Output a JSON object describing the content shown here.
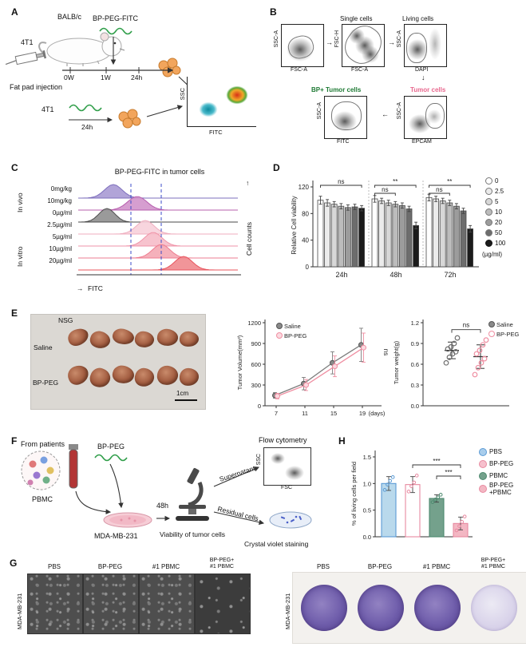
{
  "icons": {
    "arrow_right": "→",
    "arrow_left": "←",
    "arrow_down": "↓",
    "arrow_up": "↑"
  },
  "panels": {
    "A": {
      "label": "A",
      "strain": "BALB/c",
      "reagent": "BP-PEG-FITC",
      "cell_top": "4T1",
      "cell_bottom": "4T1",
      "timeline": {
        "t0": "0W",
        "t1": "1W",
        "t2": "24h"
      },
      "injection": "Fat pad injection",
      "incubation": "24h",
      "flow": {
        "y": "SSC",
        "x": "FITC"
      }
    },
    "B": {
      "label": "B",
      "p1": {
        "y": "SSC-A",
        "x": "FSC-A"
      },
      "p2": {
        "title": "Single cells",
        "y": "FSC-H",
        "x": "FSC-A"
      },
      "p3": {
        "title": "Living cells",
        "y": "SSC-A",
        "x": "DAPI"
      },
      "p4": {
        "title": "Tumor cells",
        "y": "SSC-A",
        "x": "EPCAM",
        "title_color": "#e8688e"
      },
      "p5": {
        "title": "BP+ Tumor cells",
        "y": "SSC-A",
        "x": "FITC",
        "title_color": "#1e7a34"
      }
    },
    "C": {
      "label": "C"
    },
    "D": {
      "label": "D"
    },
    "E": {
      "label": "E",
      "photo": {
        "strain": "NSG",
        "row1": "Saline",
        "row2": "BP-PEG",
        "scale_bar": "1cm"
      }
    },
    "F": {
      "label": "F",
      "from_patients": "From patients",
      "pbmc": "PBMC",
      "reagent": "BP-PEG",
      "incubation": "48h",
      "cell_line": "MDA-MB-231",
      "viability": "Viability of tumor cells",
      "supernatant": "Supernatant",
      "residual": "Residual cells",
      "flow_title": "Flow cytometry",
      "flow": {
        "y": "SSC",
        "x": "FSC"
      },
      "crystal": "Crystal violet staining"
    },
    "G": {
      "label": "G",
      "row_label": "MDA-MB-231",
      "cols": [
        "PBS",
        "BP-PEG",
        "#1 PBMC",
        "BP-PEG+\n#1 PBMC"
      ],
      "right_row_label": "MDA-MB-231",
      "right_cols": [
        "PBS",
        "BP-PEG",
        "#1 PBMC",
        "BP-PEG+\n#1 PBMC"
      ]
    },
    "H": {
      "label": "H"
    }
  },
  "chart_data": [
    {
      "id": "hist-c",
      "type": "area",
      "title": "BP-PEG-FITC in tumor cells",
      "xlabel": "FITC",
      "ylabel": "Cell counts",
      "groups": [
        {
          "name": "In vivo"
        },
        {
          "name": "In vitro"
        }
      ],
      "rows": [
        {
          "label": "0mg/kg",
          "group": "In vivo",
          "peak": 0.22,
          "width": 0.1,
          "stroke": "#7e6fbd",
          "fill": "#a99ad4"
        },
        {
          "label": "10mg/kg",
          "group": "In vivo",
          "peak": 0.37,
          "width": 0.11,
          "stroke": "#b75fae",
          "fill": "#d293cb"
        },
        {
          "label": "0µg/ml",
          "group": "In vitro",
          "peak": 0.18,
          "width": 0.09,
          "stroke": "#4a4a4a",
          "fill": "#8f8f8f"
        },
        {
          "label": "2.5µg/ml",
          "group": "In vitro",
          "peak": 0.42,
          "width": 0.1,
          "stroke": "#efaebf",
          "fill": "#f7d0da"
        },
        {
          "label": "5µg/ml",
          "group": "In vitro",
          "peak": 0.47,
          "width": 0.1,
          "stroke": "#ef93a8",
          "fill": "#f6bcc9"
        },
        {
          "label": "10µg/ml",
          "group": "In vitro",
          "peak": 0.52,
          "width": 0.1,
          "stroke": "#ee7d90",
          "fill": "#f4a9b4"
        },
        {
          "label": "20µg/ml",
          "group": "In vitro",
          "peak": 0.66,
          "width": 0.1,
          "stroke": "#e8555e",
          "fill": "#f08a8e"
        }
      ],
      "gate_lines": [
        0.33,
        0.52
      ],
      "gate_color": "#3b4bc8"
    },
    {
      "id": "bars-d",
      "type": "bar",
      "ylabel": "Relative Cell viability",
      "ylim": [
        0,
        120
      ],
      "yticks": [
        0,
        40,
        80,
        120
      ],
      "categories": [
        "24h",
        "48h",
        "72h"
      ],
      "series_labels": [
        "0",
        "2.5",
        "5",
        "10",
        "20",
        "50",
        "100"
      ],
      "legend_unit": "(µg/ml)",
      "series_fills": [
        "#ffffff",
        "#ebebeb",
        "#d7d7d7",
        "#bcbcbc",
        "#9c9c9c",
        "#6d6d6d",
        "#1b1b1b"
      ],
      "bar_stroke": "#4a4a4a",
      "values": [
        [
          100,
          96,
          94,
          91,
          89,
          90,
          88
        ],
        [
          102,
          99,
          96,
          94,
          92,
          87,
          62
        ],
        [
          104,
          102,
          99,
          96,
          91,
          84,
          57
        ]
      ],
      "errors": [
        [
          6,
          5,
          4,
          4,
          4,
          4,
          4
        ],
        [
          5,
          4,
          4,
          4,
          4,
          4,
          5
        ],
        [
          5,
          4,
          4,
          4,
          4,
          4,
          5
        ]
      ],
      "significance": [
        {
          "group": 0,
          "label": "ns",
          "from": 0,
          "to": 6,
          "level": 1
        },
        {
          "group": 1,
          "label": "ns",
          "from": 0,
          "to": 3,
          "level": 0
        },
        {
          "group": 1,
          "label": "**",
          "from": 0,
          "to": 6,
          "level": 1
        },
        {
          "group": 2,
          "label": "ns",
          "from": 0,
          "to": 3,
          "level": 0
        },
        {
          "group": 2,
          "label": "**",
          "from": 0,
          "to": 6,
          "level": 1
        }
      ]
    },
    {
      "id": "line-e",
      "type": "line",
      "ylabel": "Tumor Volume(mm³)",
      "xlabel": "(days)",
      "ylim": [
        0,
        1200
      ],
      "yticks": [
        0,
        300,
        600,
        900,
        1200
      ],
      "x": [
        7,
        11,
        15,
        19
      ],
      "series": [
        {
          "name": "Saline",
          "color": "#7d7d7d",
          "values": [
            150,
            320,
            620,
            880
          ],
          "errors": [
            40,
            90,
            160,
            240
          ]
        },
        {
          "name": "BP-PEG",
          "color": "#ef8fa2",
          "values": [
            140,
            300,
            570,
            840
          ],
          "errors": [
            40,
            80,
            150,
            210
          ]
        }
      ],
      "annotation": "ns"
    },
    {
      "id": "dots-e",
      "type": "scatter",
      "ylabel": "Tumor weight(g)",
      "ylim": [
        0,
        1.2
      ],
      "yticks": [
        "0.0",
        "0.3",
        "0.6",
        "0.9",
        "1.2"
      ],
      "groups": [
        {
          "name": "Saline",
          "color": "#6e6e6e",
          "values": [
            0.62,
            0.7,
            0.75,
            0.78,
            0.82,
            0.85,
            0.9,
            0.98
          ],
          "mean": 0.8,
          "sd": 0.12
        },
        {
          "name": "BP-PEG",
          "color": "#ef8fa2",
          "values": [
            0.45,
            0.55,
            0.62,
            0.68,
            0.75,
            0.8,
            0.88,
            0.95
          ],
          "mean": 0.71,
          "sd": 0.17
        }
      ],
      "annotation": "ns"
    },
    {
      "id": "bars-h",
      "type": "bar",
      "ylabel": "% of living cells per field",
      "ylim": [
        0,
        1.5
      ],
      "yticks": [
        "0.0",
        "0.5",
        "1.0",
        "1.5"
      ],
      "categories": [
        "PBS",
        "BP-PEG",
        "PBMC",
        "BP-PEG\n+PBMC"
      ],
      "values": [
        1.0,
        0.98,
        0.72,
        0.25
      ],
      "errors": [
        0.13,
        0.15,
        0.07,
        0.12
      ],
      "fills": [
        "#b9d9ec",
        "#ffffff",
        "#74a18c",
        "#f3b7c3"
      ],
      "strokes": [
        "#5b9bd5",
        "#e889a0",
        "#4d8a6f",
        "#e889a0"
      ],
      "points": [
        [
          0.88,
          0.98,
          1.05,
          1.12
        ],
        [
          0.85,
          0.95,
          1.02,
          1.15
        ],
        [
          0.65,
          0.7,
          0.74,
          0.79
        ],
        [
          0.12,
          0.2,
          0.28,
          0.38
        ]
      ],
      "significance": [
        {
          "from": 2,
          "to": 3,
          "label": "***",
          "level": 0
        },
        {
          "from": 1,
          "to": 3,
          "label": "***",
          "level": 1
        }
      ],
      "legend": [
        "PBS",
        "BP-PEG",
        "PBMC",
        "BP-PEG\n+PBMC"
      ],
      "legend_colors": [
        "#a8cdec",
        "#f6c0cd",
        "#74a18c",
        "#f3b7c3"
      ],
      "legend_strokes": [
        "#5b9bd5",
        "#e889a0",
        "#4d8a6f",
        "#e889a0"
      ]
    }
  ]
}
